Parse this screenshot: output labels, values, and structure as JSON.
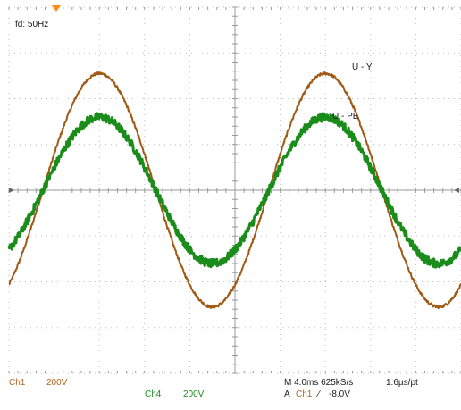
{
  "colors": {
    "ch1": "#a05a14",
    "ch4": "#1a8c1a",
    "grid": "#bdbdbd",
    "trigger_marker": "#ff8c1a",
    "background": "#ffffff"
  },
  "readout": {
    "frequency": "fd: 50Hz"
  },
  "traces": {
    "ch1_label": "U - Y",
    "ch4_label": "U - PE"
  },
  "channels": {
    "ch1_name": "Ch1",
    "ch1_scale": "200V",
    "ch4_name": "Ch4",
    "ch4_scale": "200V"
  },
  "timebase": {
    "main": "M 4.0ms 625kS/s",
    "resolution": "1.6µs/pt"
  },
  "trigger": {
    "mode": "A",
    "source": "Ch1",
    "slope_icon": "rising-edge-icon",
    "slope_symbol": "⁄",
    "level": "-8.0V"
  },
  "chart_data": {
    "type": "line",
    "grid": true,
    "xlim": [
      0,
      40
    ],
    "ylim": [
      -4,
      4
    ],
    "series": [
      {
        "name": "U - Y",
        "channel": "Ch1",
        "amplitude_div": 2.55,
        "phase_ms": -2.0,
        "period_ms": 20
      },
      {
        "name": "U - PE",
        "channel": "Ch4",
        "amplitude_div": 1.6,
        "phase_ms": -2.0,
        "period_ms": 20
      }
    ]
  }
}
